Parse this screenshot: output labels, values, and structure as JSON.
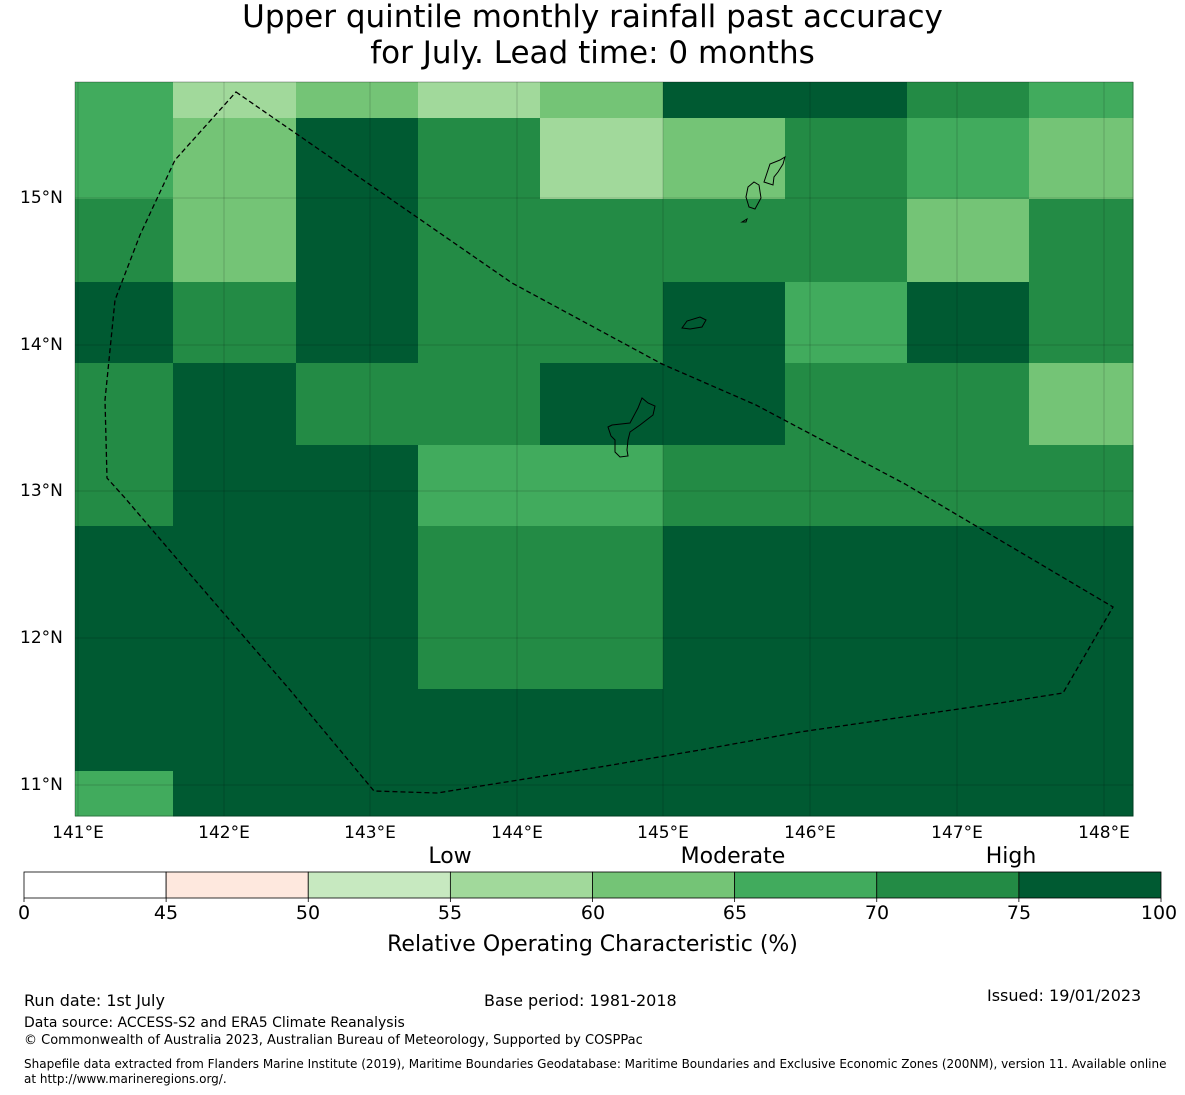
{
  "title": {
    "line1": "Upper quintile monthly rainfall past accuracy",
    "line2": "for July. Lead time: 0 months"
  },
  "map": {
    "lon_ticks": [
      "141°E",
      "142°E",
      "143°E",
      "144°E",
      "145°E",
      "146°E",
      "147°E",
      "148°E"
    ],
    "lat_ticks": [
      "15°N",
      "14°N",
      "13°N",
      "12°N",
      "11°N"
    ],
    "grid_rows": [
      [
        5,
        3,
        4,
        3,
        4,
        7,
        7,
        6,
        5
      ],
      [
        5,
        4,
        7,
        6,
        3,
        4,
        6,
        5,
        4
      ],
      [
        6,
        4,
        7,
        6,
        6,
        6,
        6,
        4,
        6
      ],
      [
        7,
        6,
        7,
        6,
        6,
        7,
        5,
        7,
        6
      ],
      [
        6,
        7,
        6,
        6,
        7,
        7,
        6,
        6,
        4
      ],
      [
        6,
        7,
        7,
        5,
        5,
        6,
        6,
        6,
        6
      ],
      [
        7,
        7,
        7,
        6,
        6,
        7,
        7,
        7,
        7
      ],
      [
        7,
        7,
        7,
        6,
        6,
        7,
        7,
        7,
        7
      ],
      [
        7,
        7,
        7,
        7,
        7,
        7,
        7,
        7,
        7
      ],
      [
        5,
        7,
        7,
        7,
        7,
        7,
        7,
        7,
        7
      ]
    ]
  },
  "colorbar": {
    "categories": [
      "Low",
      "Moderate",
      "High"
    ],
    "ticks": [
      "0",
      "45",
      "50",
      "55",
      "60",
      "65",
      "70",
      "75",
      "100"
    ],
    "colors": [
      "#ffffff",
      "#fee8de",
      "#c7e9c0",
      "#a1d99b",
      "#74c476",
      "#41ab5d",
      "#238b45",
      "#005a32"
    ],
    "label": "Relative Operating Characteristic (%)"
  },
  "footer": {
    "run_date": "Run date: 1st July",
    "base_period": "Base period: 1981-2018",
    "issued": "Issued: 19/01/2023",
    "data_source": "Data source: ACCESS-S2 and ERA5 Climate Reanalysis",
    "copyright": "© Commonwealth of Australia 2023, Australian Bureau of Meteorology, Supported by COSPPac",
    "shapefile_line1": "Shapefile data extracted from Flanders Marine Institute (2019), Maritime Boundaries Geodatabase: Maritime Boundaries and Exclusive Economic Zones (200NM), version 11. Available online",
    "shapefile_line2": "at http://www.marineregions.org/."
  }
}
